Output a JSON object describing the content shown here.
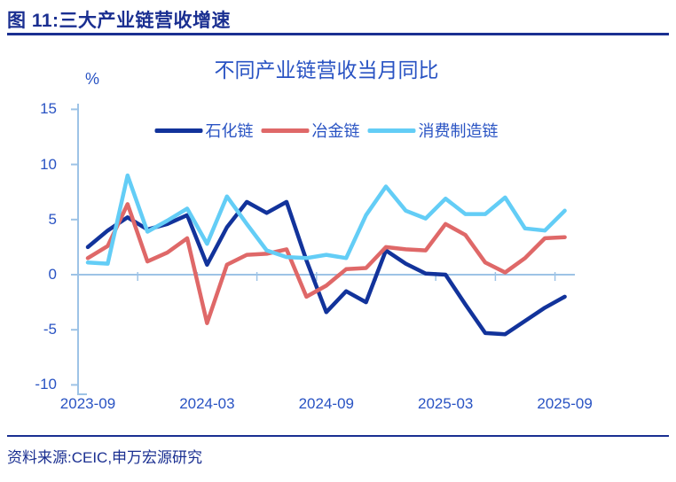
{
  "figure": {
    "title": "图 11:三大产业链营收增速",
    "source": "资料来源:CEIC,申万宏源研究"
  },
  "chart_data": {
    "type": "line",
    "title": "不同产业链营收当月同比",
    "unit_label": "%",
    "x": [
      "2023-09",
      "2023-10",
      "2023-11",
      "2023-12",
      "2024-01",
      "2024-02",
      "2024-03",
      "2024-04",
      "2024-05",
      "2024-06",
      "2024-07",
      "2024-08",
      "2024-09",
      "2024-10",
      "2024-11",
      "2024-12",
      "2025-01",
      "2025-02",
      "2025-03",
      "2025-04",
      "2025-05",
      "2025-06",
      "2025-07",
      "2025-08",
      "2025-09"
    ],
    "xtick_labels": [
      "2023-09",
      "2024-03",
      "2024-09",
      "2025-03",
      "2025-09"
    ],
    "yticks": [
      15,
      10,
      5,
      0,
      -5,
      -10
    ],
    "ylim": [
      -10,
      15
    ],
    "grid": "zero-line-only",
    "legend_position": "top-center",
    "series": [
      {
        "name": "石化链",
        "color": "#12339B",
        "values": [
          2.5,
          4.0,
          5.2,
          4.1,
          4.6,
          5.4,
          0.9,
          4.3,
          6.6,
          5.6,
          6.6,
          1.3,
          -3.4,
          -1.5,
          -2.5,
          2.2,
          1.0,
          0.1,
          0.0,
          -2.7,
          -5.3,
          -5.4,
          -4.2,
          -3.0,
          -2.0
        ]
      },
      {
        "name": "冶金链",
        "color": "#DF6868",
        "values": [
          1.5,
          2.6,
          6.4,
          1.2,
          2.0,
          3.3,
          -4.4,
          0.9,
          1.8,
          1.9,
          2.3,
          -2.0,
          -1.0,
          0.5,
          0.6,
          2.5,
          2.3,
          2.2,
          4.6,
          3.6,
          1.1,
          0.2,
          1.5,
          3.3,
          3.4
        ]
      },
      {
        "name": "消费制造链",
        "color": "#63CDF6",
        "values": [
          1.1,
          1.0,
          9.0,
          3.9,
          4.9,
          6.0,
          2.8,
          7.1,
          4.6,
          2.2,
          1.6,
          1.5,
          1.8,
          1.5,
          5.4,
          8.0,
          5.8,
          5.1,
          6.9,
          5.5,
          5.5,
          7.0,
          4.2,
          4.0,
          5.8
        ]
      }
    ],
    "colors": {
      "axis": "#9DC3E6",
      "label_blue": "#2953C3",
      "header_navy": "#1A2F91"
    }
  }
}
